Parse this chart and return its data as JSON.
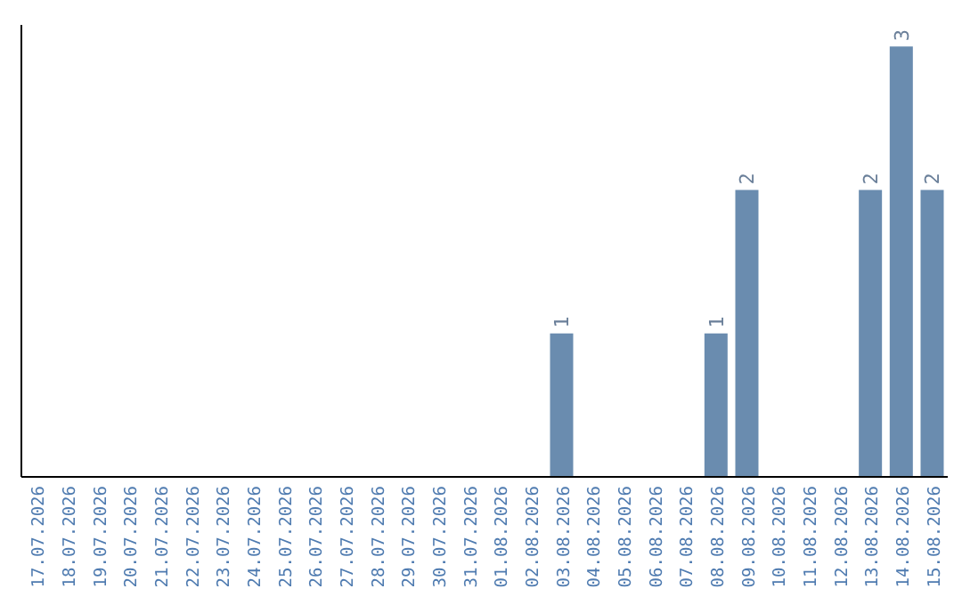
{
  "chart_data": {
    "type": "bar",
    "categories": [
      "17.07.2026",
      "18.07.2026",
      "19.07.2026",
      "20.07.2026",
      "21.07.2026",
      "22.07.2026",
      "23.07.2026",
      "24.07.2026",
      "25.07.2026",
      "26.07.2026",
      "27.07.2026",
      "28.07.2026",
      "29.07.2026",
      "30.07.2026",
      "31.07.2026",
      "01.08.2026",
      "02.08.2026",
      "03.08.2026",
      "04.08.2026",
      "05.08.2026",
      "06.08.2026",
      "07.08.2026",
      "08.08.2026",
      "09.08.2026",
      "10.08.2026",
      "11.08.2026",
      "12.08.2026",
      "13.08.2026",
      "14.08.2026",
      "15.08.2026"
    ],
    "values": [
      null,
      null,
      null,
      null,
      null,
      null,
      null,
      null,
      null,
      null,
      null,
      null,
      null,
      null,
      null,
      null,
      null,
      1,
      null,
      null,
      null,
      null,
      1,
      2,
      null,
      null,
      null,
      2,
      3,
      2
    ],
    "data_labels": true,
    "color": "#6a8caf",
    "tick_labels": "x",
    "grid": false,
    "legend": false
  }
}
